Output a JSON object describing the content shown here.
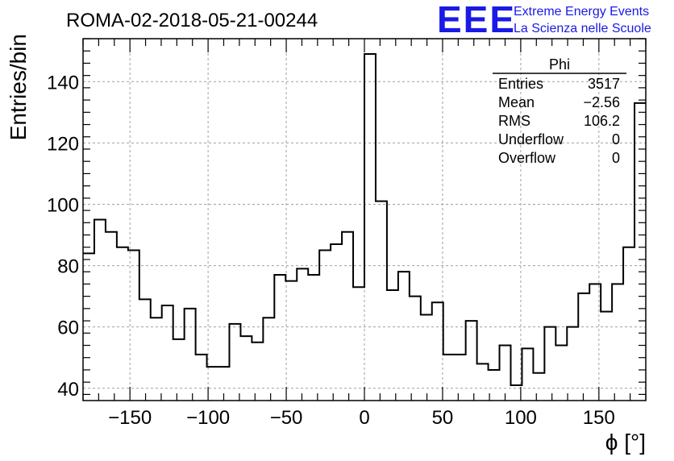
{
  "chart_data": {
    "type": "bar",
    "style": "step-histogram",
    "title": "ROMA-02-2018-05-21-00244",
    "xlabel": "ϕ [°]",
    "ylabel": "Entries/bin",
    "xlim": [
      -180,
      180
    ],
    "ylim": [
      36,
      154
    ],
    "grid": true,
    "bin_width": 7.2,
    "x_ticks": [
      -150,
      -100,
      -50,
      0,
      50,
      100,
      150
    ],
    "x_tick_labels": [
      "−150",
      "−100",
      "−50",
      "0",
      "50",
      "100",
      "150"
    ],
    "y_ticks": [
      40,
      60,
      80,
      100,
      120,
      140
    ],
    "y_tick_labels": [
      "40",
      "60",
      "80",
      "100",
      "120",
      "140"
    ],
    "values": [
      84,
      95,
      91,
      86,
      85,
      69,
      63,
      67,
      56,
      66,
      51,
      47,
      47,
      61,
      57,
      55,
      63,
      77,
      75,
      79,
      77,
      85,
      87,
      91,
      73,
      149,
      101,
      72,
      78,
      70,
      64,
      68,
      51,
      51,
      62,
      48,
      46,
      54,
      41,
      53,
      45,
      60,
      54,
      60,
      71,
      74,
      65,
      74,
      86,
      133
    ],
    "stats_box": {
      "title": "Phi",
      "rows": [
        {
          "label": "Entries",
          "value": "3517"
        },
        {
          "label": "Mean",
          "value": "−2.56"
        },
        {
          "label": "RMS",
          "value": "106.2"
        },
        {
          "label": "Underflow",
          "value": "0"
        },
        {
          "label": "Overflow",
          "value": "0"
        }
      ]
    }
  },
  "logo": {
    "mark": "EEE",
    "line1": "Extreme Energy Events",
    "line2": "La Scienza nelle Scuole",
    "color": "#1a1ae6"
  }
}
